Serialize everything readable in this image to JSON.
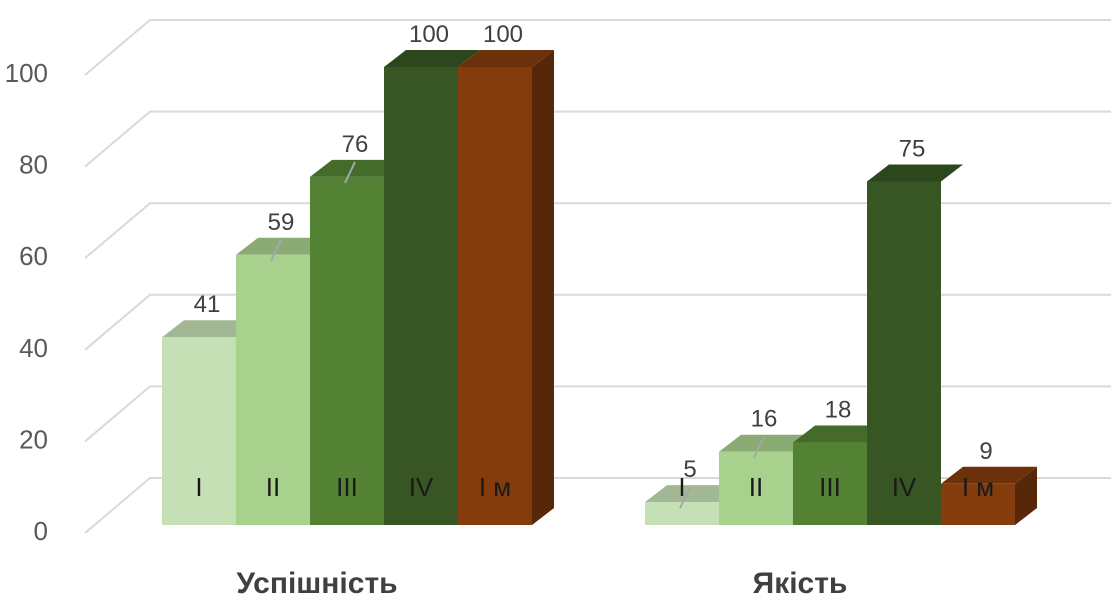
{
  "chart_data": {
    "type": "bar",
    "categories": [
      "Успішність",
      "Якість"
    ],
    "series": [
      {
        "name": "I",
        "values": [
          41,
          5
        ],
        "color": "#c5e0b4",
        "label_in_bar": "I"
      },
      {
        "name": "II",
        "values": [
          59,
          16
        ],
        "color": "#a9d18e",
        "label_in_bar": "II"
      },
      {
        "name": "III",
        "values": [
          76,
          18
        ],
        "color": "#548235",
        "label_in_bar": "III"
      },
      {
        "name": "IV",
        "values": [
          100,
          75
        ],
        "color": "#375623",
        "label_in_bar": "IV"
      },
      {
        "name": "І м",
        "values": [
          100,
          9
        ],
        "color": "#843c0c",
        "label_in_bar": "І м"
      }
    ],
    "y_ticks": [
      "0",
      "20",
      "40",
      "60",
      "80",
      "100"
    ],
    "ylim": [
      0,
      100
    ],
    "grid": true,
    "legend": "none",
    "data_labels": true,
    "style": "3d-column"
  }
}
